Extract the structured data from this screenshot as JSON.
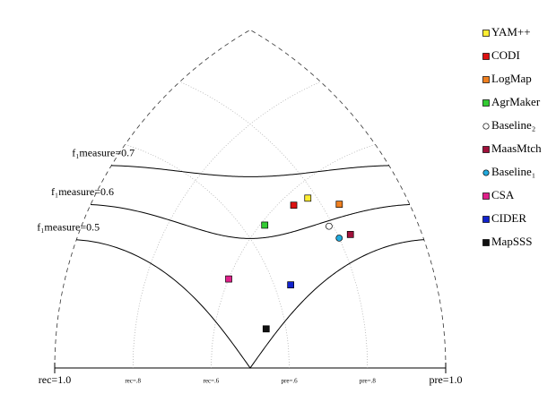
{
  "chart_data": {
    "type": "precision-recall-triangle",
    "f_measures": [
      {
        "value": 0.7,
        "label": "f₁measure=0.7"
      },
      {
        "value": 0.6,
        "label": "f₁measure=0.6"
      },
      {
        "value": 0.5,
        "label": "f₁measure=0.5"
      }
    ],
    "recall_ticks": [
      {
        "value": 1.0,
        "label": "rec=1.0"
      },
      {
        "value": 0.8,
        "label": "rec=.8"
      },
      {
        "value": 0.6,
        "label": "rec=.6"
      }
    ],
    "precision_ticks": [
      {
        "value": 0.6,
        "label": "pre=.6"
      },
      {
        "value": 0.8,
        "label": "pre=.8"
      },
      {
        "value": 1.0,
        "label": "pre=1.0"
      }
    ],
    "series": [
      {
        "name": "YAM++",
        "color": "#ffee33",
        "marker": "square",
        "precision": 0.78,
        "recall": 0.56
      },
      {
        "name": "CODI",
        "color": "#dd1111",
        "marker": "square",
        "precision": 0.74,
        "recall": 0.57
      },
      {
        "name": "LogMap",
        "color": "#f08020",
        "marker": "square",
        "precision": 0.84,
        "recall": 0.5
      },
      {
        "name": "AgrMaker",
        "color": "#33cc33",
        "marker": "square",
        "precision": 0.65,
        "recall": 0.59
      },
      {
        "name": "Baseline₂",
        "color": "#ffffff",
        "marker": "circle",
        "precision": 0.79,
        "recall": 0.47
      },
      {
        "name": "MaasMtch",
        "color": "#a0103a",
        "marker": "square",
        "precision": 0.83,
        "recall": 0.42
      },
      {
        "name": "Baseline₁",
        "color": "#22aadd",
        "marker": "circle",
        "precision": 0.8,
        "recall": 0.43
      },
      {
        "name": "CSA",
        "color": "#e0208a",
        "marker": "square",
        "precision": 0.5,
        "recall": 0.6
      },
      {
        "name": "CIDER",
        "color": "#1122cc",
        "marker": "square",
        "precision": 0.64,
        "recall": 0.45
      },
      {
        "name": "MapSSS",
        "color": "#111111",
        "marker": "square",
        "precision": 0.55,
        "recall": 0.47
      }
    ]
  }
}
